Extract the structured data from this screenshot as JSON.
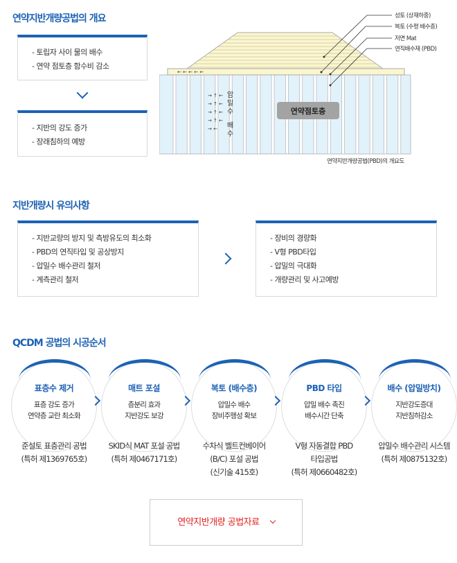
{
  "section1": {
    "title": "연약지반개량공법의 개요",
    "box1": [
      "- 토립자 사이 물의 배수",
      "- 연약 점토층 함수비 감소"
    ],
    "box2": [
      "- 지반의 강도 증가",
      "- 장래침하의 예방"
    ],
    "diagram": {
      "labels": [
        "성토 (상재하중)",
        "복토 (수평 배수층)",
        "저면 Mat",
        "연직배수재 (PBD)"
      ],
      "clay": "연약점토층",
      "water": [
        "암",
        "밀",
        "수",
        "배",
        "수"
      ],
      "caption": "연약지반개량공법(PBD)의 개요도"
    }
  },
  "section2": {
    "title": "지반개량시 유의사항",
    "box1": [
      "- 지반교량의 방지 및 측방유도의 최소화",
      "- PBD의 연직타입 및 공상방지",
      "- 압밀수 배수관리 철저",
      "- 계측관리 철저"
    ],
    "box2": [
      "- 장비의 경량화",
      "- V형 PBD타입",
      "- 압밀의 극대화",
      "- 개량관리 및 사고예방"
    ]
  },
  "section3": {
    "title": "QCDM 공법의 시공순서",
    "steps": [
      {
        "title": "표층수 제거",
        "desc": [
          "표층 강도 증가",
          "연약층 교란 최소화"
        ],
        "method": [
          "준설토 표층관리 공법",
          "(특허 제1369765호)"
        ]
      },
      {
        "title": "매트 포설",
        "desc": [
          "층분리 효과",
          "지반강도 보강"
        ],
        "method": [
          "SKID식 MAT 포설 공법",
          "(특허 제0467171호)"
        ]
      },
      {
        "title": "복토 (배수층)",
        "desc": [
          "압밀수 배수",
          "장비주행성 확보"
        ],
        "method": [
          "수차식 벨트컨베이어",
          "(B/C) 포설 공법",
          "(신기술 415호)"
        ]
      },
      {
        "title": "PBD 타입",
        "desc": [
          "압밀 배수 촉진",
          "배수시간 단축"
        ],
        "method": [
          "V형 자동결합 PBD",
          "타입공법",
          "(특허 제0660482호)"
        ]
      },
      {
        "title": "배수 (압밀방치)",
        "desc": [
          "지반강도증대",
          "지반침하감소"
        ],
        "method": [
          "압밀수 배수관리 시스템",
          "(특허 제0875132호)"
        ]
      }
    ]
  },
  "button": {
    "label": "연약지반개량 공법자료"
  },
  "colors": {
    "accent": "#1d62b4",
    "button_text": "#e02020"
  }
}
